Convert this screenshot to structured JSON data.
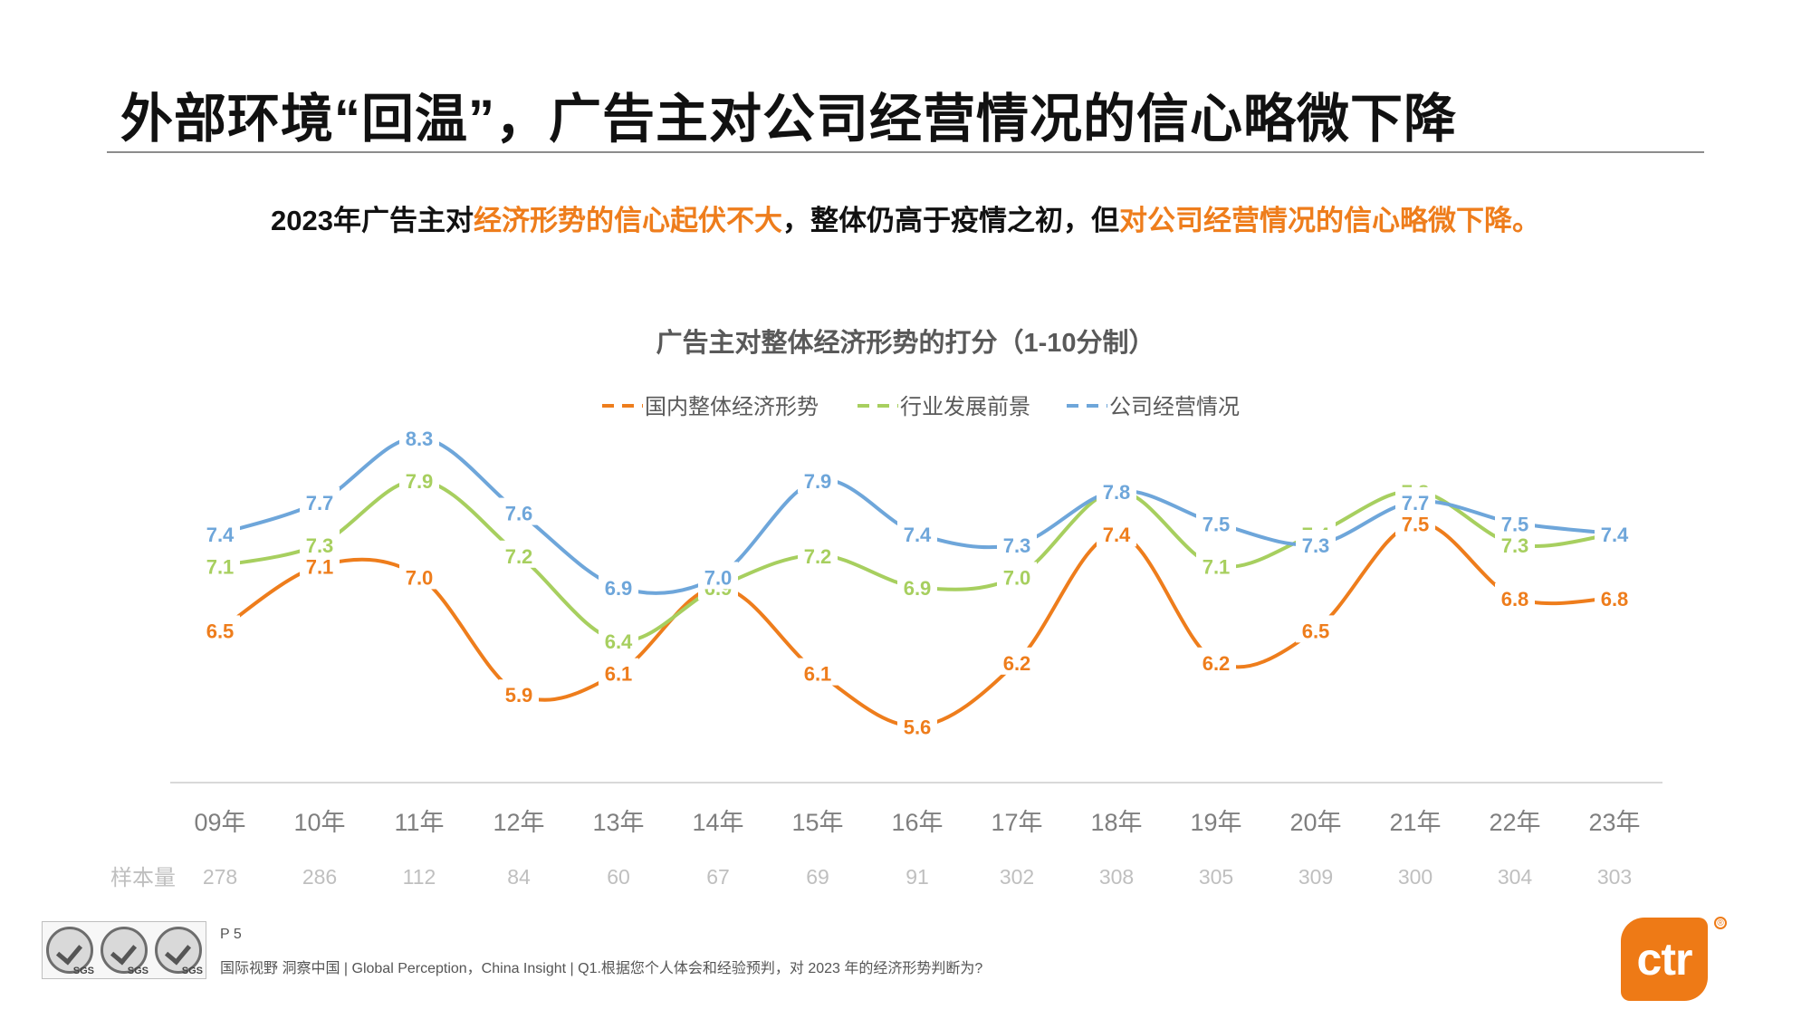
{
  "slide": {
    "title": "外部环境“回温”，广告主对公司经营情况的信心略微下降",
    "subtitle": {
      "part1": "2023年广告主对",
      "part2": "经济形势的信心起伏不大",
      "part3": "，整体仍高于疫情之初，但",
      "part4": "对公司经营情况的信心略微下降。"
    }
  },
  "chart_data": {
    "type": "line",
    "title": "广告主对整体经济形势的打分（1-10分制）",
    "categories": [
      "09年",
      "10年",
      "11年",
      "12年",
      "13年",
      "14年",
      "15年",
      "16年",
      "17年",
      "18年",
      "19年",
      "20年",
      "21年",
      "22年",
      "23年"
    ],
    "series": [
      {
        "name": "国内整体经济形势",
        "color": "#ee7d1c",
        "values": [
          6.5,
          7.1,
          7.0,
          5.9,
          6.1,
          6.9,
          6.1,
          5.6,
          6.2,
          7.4,
          6.2,
          6.5,
          7.5,
          6.8,
          6.8
        ]
      },
      {
        "name": "行业发展前景",
        "color": "#a7cf5f",
        "values": [
          7.1,
          7.3,
          7.9,
          7.2,
          6.4,
          6.9,
          7.2,
          6.9,
          7.0,
          7.8,
          7.1,
          7.4,
          7.8,
          7.3,
          7.4
        ]
      },
      {
        "name": "公司经营情况",
        "color": "#6ea6da",
        "values": [
          7.4,
          7.7,
          8.3,
          7.6,
          6.9,
          7.0,
          7.9,
          7.4,
          7.3,
          7.8,
          7.5,
          7.3,
          7.7,
          7.5,
          7.4
        ]
      }
    ],
    "sample_label": "样本量",
    "sample_sizes": [
      "278",
      "286",
      "112",
      "84",
      "60",
      "67",
      "69",
      "91",
      "302",
      "308",
      "305",
      "309",
      "300",
      "304",
      "303"
    ],
    "legend_position": "top",
    "grid": false
  },
  "footer": {
    "page": "P 5",
    "source": "国际视野  洞察中国 |  Global Perception，China Insight  | Q1.根据您个人体会和经验预判，对 2023 年的经济形势判断为?",
    "cert_label": "SGS",
    "logo_text": "ctr",
    "logo_mark": "®"
  }
}
